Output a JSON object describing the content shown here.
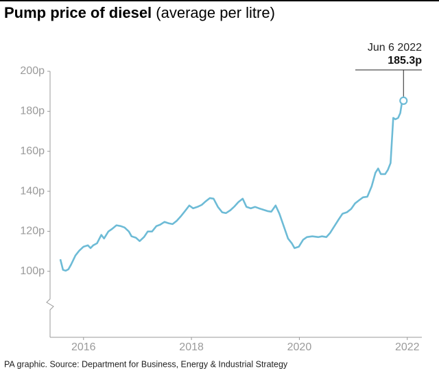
{
  "chart_data": {
    "type": "line",
    "title": "Pump price of diesel",
    "subtitle": "(average per litre)",
    "source": "PA graphic. Source: Department for Business, Energy & Industrial Strategy",
    "annotation": {
      "date": "Jun 6 2022",
      "text": "185.3p"
    },
    "x": [
      2016.07,
      2016.12,
      2016.17,
      2016.22,
      2016.27,
      2016.35,
      2016.42,
      2016.5,
      2016.58,
      2016.63,
      2016.68,
      2016.75,
      2016.83,
      2016.88,
      2016.96,
      2017.03,
      2017.11,
      2017.19,
      2017.26,
      2017.34,
      2017.39,
      2017.47,
      2017.54,
      2017.62,
      2017.69,
      2017.77,
      2017.85,
      2017.92,
      2018.0,
      2018.08,
      2018.15,
      2018.23,
      2018.3,
      2018.38,
      2018.46,
      2018.53,
      2018.61,
      2018.69,
      2018.76,
      2018.84,
      2018.91,
      2018.99,
      2019.07,
      2019.14,
      2019.22,
      2019.3,
      2019.37,
      2019.45,
      2019.52,
      2019.6,
      2019.68,
      2019.75,
      2019.83,
      2019.91,
      2019.98,
      2020.06,
      2020.13,
      2020.21,
      2020.29,
      2020.36,
      2020.41,
      2020.49,
      2020.57,
      2020.64,
      2020.74,
      2020.85,
      2020.92,
      2021.0,
      2021.07,
      2021.15,
      2021.23,
      2021.3,
      2021.38,
      2021.46,
      2021.53,
      2021.61,
      2021.68,
      2021.76,
      2021.84,
      2021.91,
      2021.96,
      2022.01,
      2022.09,
      2022.14,
      2022.19,
      2022.24,
      2022.28,
      2022.33,
      2022.37,
      2022.4,
      2022.43
    ],
    "series": [
      {
        "color": "#6dbbd6",
        "values": [
          106,
          100.7,
          100.3,
          101,
          103.4,
          107.9,
          110.3,
          112.3,
          113,
          111.6,
          113,
          114,
          118.2,
          116.4,
          119.9,
          121.2,
          123,
          122.6,
          121.9,
          119.9,
          117.5,
          116.8,
          115.1,
          117.1,
          119.9,
          119.9,
          122.6,
          123.3,
          124.7,
          124,
          123.6,
          125.3,
          127.4,
          130.1,
          132.9,
          131.5,
          132.2,
          133.2,
          134.9,
          136.6,
          136.3,
          132.2,
          129.5,
          129.1,
          130.5,
          132.5,
          134.6,
          136.3,
          132.2,
          131.5,
          132.2,
          131.5,
          130.8,
          130.1,
          129.8,
          132.9,
          128.8,
          122.6,
          116.4,
          114,
          111.6,
          112.3,
          115.8,
          117.1,
          117.5,
          117.1,
          117.5,
          117.1,
          119.2,
          122.6,
          126,
          128.8,
          129.5,
          131.2,
          133.9,
          135.6,
          137,
          137.3,
          142.5,
          149.3,
          151.4,
          148.6,
          148.6,
          150.7,
          154.1,
          176.7,
          176,
          176.7,
          179.1,
          184.2,
          185.3
        ]
      }
    ],
    "xlim": [
      2015.88,
      2022.77
    ],
    "ylim": [
      67,
      200
    ],
    "xticks": [
      {
        "value": 2016.5,
        "label": "2016"
      },
      {
        "value": 2018.5,
        "label": "2018"
      },
      {
        "value": 2020.5,
        "label": "2020"
      },
      {
        "value": 2022.5,
        "label": "2022"
      }
    ],
    "yticks": [
      {
        "value": 100,
        "label": "100p"
      },
      {
        "value": 120,
        "label": "120p"
      },
      {
        "value": 140,
        "label": "140p"
      },
      {
        "value": 160,
        "label": "160p"
      },
      {
        "value": 180,
        "label": "180p"
      },
      {
        "value": 200,
        "label": "200p"
      }
    ],
    "grid": false
  }
}
